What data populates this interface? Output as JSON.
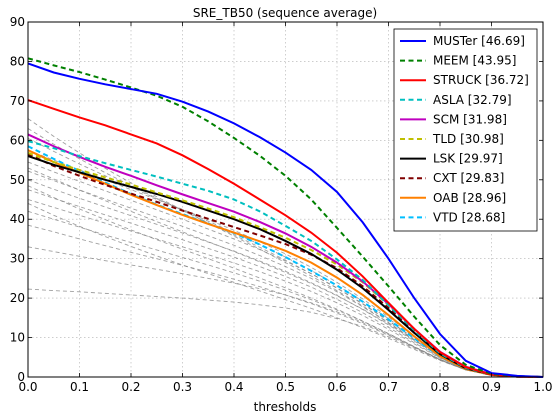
{
  "chart_data": {
    "type": "line",
    "title": "SRE_TB50 (sequence average)",
    "xlabel": "thresholds",
    "ylabel": "",
    "xlim": [
      0,
      1
    ],
    "ylim": [
      0,
      90
    ],
    "xticks": [
      "0.0",
      "0.1",
      "0.2",
      "0.3",
      "0.4",
      "0.5",
      "0.6",
      "0.7",
      "0.8",
      "0.9",
      "1.0"
    ],
    "yticks": [
      "0",
      "10",
      "20",
      "30",
      "40",
      "50",
      "60",
      "70",
      "80",
      "90"
    ],
    "grid": true,
    "legend_position": "top-right",
    "x": [
      0.0,
      0.05,
      0.1,
      0.15,
      0.2,
      0.25,
      0.3,
      0.35,
      0.4,
      0.45,
      0.5,
      0.55,
      0.6,
      0.65,
      0.7,
      0.75,
      0.8,
      0.85,
      0.9,
      0.95,
      1.0
    ],
    "series": [
      {
        "name": "MUSTer [46.69]",
        "color": "#0000ff",
        "style": "solid",
        "values": [
          79.5,
          77.2,
          75.6,
          74.2,
          73.0,
          71.8,
          69.8,
          67.3,
          64.3,
          60.8,
          56.9,
          52.5,
          46.9,
          39.2,
          30.0,
          20.0,
          10.9,
          4.1,
          1.0,
          0.3,
          0.0
        ]
      },
      {
        "name": "MEEM [43.95]",
        "color": "#008000",
        "style": "dashed",
        "values": [
          80.8,
          79.0,
          77.3,
          75.4,
          73.4,
          71.3,
          68.5,
          64.8,
          60.6,
          56.1,
          51.0,
          45.0,
          37.8,
          30.5,
          23.0,
          15.3,
          8.1,
          3.1,
          0.8,
          0.2,
          0.0
        ]
      },
      {
        "name": "STRUCK [36.72]",
        "color": "#ff0000",
        "style": "solid",
        "values": [
          70.2,
          68.0,
          65.8,
          63.8,
          61.5,
          59.2,
          56.2,
          52.7,
          49.0,
          45.0,
          41.0,
          36.6,
          31.5,
          25.5,
          18.8,
          12.2,
          6.3,
          2.5,
          0.6,
          0.1,
          0.0
        ]
      },
      {
        "name": "ASLA [32.79]",
        "color": "#00bfbf",
        "style": "dashed",
        "values": [
          59.8,
          58.0,
          56.0,
          54.2,
          52.5,
          50.8,
          49.0,
          47.2,
          45.0,
          42.0,
          38.3,
          34.5,
          29.8,
          24.6,
          18.2,
          11.8,
          6.0,
          2.3,
          0.6,
          0.1,
          0.0
        ]
      },
      {
        "name": "SCM [31.98]",
        "color": "#bf00bf",
        "style": "solid",
        "values": [
          61.5,
          58.5,
          55.8,
          53.3,
          51.0,
          48.6,
          46.3,
          44.1,
          41.9,
          39.3,
          36.4,
          33.0,
          29.0,
          24.2,
          18.5,
          12.2,
          6.4,
          2.6,
          0.7,
          0.1,
          0.0
        ]
      },
      {
        "name": "TLD [30.98]",
        "color": "#bfbf00",
        "style": "dashed",
        "values": [
          56.8,
          54.5,
          52.5,
          50.6,
          48.8,
          46.8,
          44.8,
          42.7,
          40.5,
          38.0,
          35.3,
          32.2,
          28.5,
          24.0,
          18.3,
          12.2,
          6.3,
          2.5,
          0.6,
          0.1,
          0.0
        ]
      },
      {
        "name": "LSK [29.97]",
        "color": "#000000",
        "style": "solid",
        "values": [
          56.0,
          53.8,
          51.9,
          50.0,
          48.2,
          46.4,
          44.4,
          42.2,
          40.0,
          37.5,
          34.5,
          31.2,
          27.2,
          22.5,
          17.0,
          11.2,
          5.8,
          2.2,
          0.6,
          0.1,
          0.0
        ]
      },
      {
        "name": "CXT [29.83]",
        "color": "#800000",
        "style": "dashed",
        "values": [
          56.5,
          53.5,
          51.0,
          48.7,
          46.5,
          44.4,
          42.2,
          40.1,
          38.0,
          35.9,
          33.7,
          31.0,
          27.6,
          23.0,
          17.5,
          11.5,
          5.9,
          2.3,
          0.6,
          0.1,
          0.0
        ]
      },
      {
        "name": "OAB [28.96]",
        "color": "#ff8000",
        "style": "solid",
        "values": [
          57.5,
          54.5,
          51.8,
          49.0,
          46.2,
          43.6,
          41.1,
          38.8,
          36.6,
          34.4,
          32.0,
          29.0,
          25.2,
          20.8,
          15.7,
          10.3,
          5.3,
          2.0,
          0.5,
          0.1,
          0.0
        ]
      },
      {
        "name": "VTD [28.68]",
        "color": "#00bfff",
        "style": "dashed",
        "values": [
          58.5,
          55.3,
          52.2,
          49.3,
          46.4,
          43.7,
          41.3,
          38.9,
          36.5,
          33.6,
          30.4,
          26.9,
          23.2,
          19.1,
          14.6,
          9.8,
          5.2,
          2.0,
          0.5,
          0.1,
          0.0
        ]
      }
    ],
    "background_series": [
      {
        "color": "#808080",
        "style": "dashed",
        "values": [
          22.3,
          21.9,
          21.6,
          21.2,
          20.8,
          20.4,
          20.0,
          19.5,
          19.0,
          18.3,
          17.5,
          16.4,
          14.8,
          12.8,
          10.2,
          7.3,
          4.3,
          1.8,
          0.5,
          0.1,
          0.0
        ]
      },
      {
        "color": "#808080",
        "style": "dashed",
        "values": [
          33.0,
          31.8,
          30.6,
          29.5,
          28.4,
          27.3,
          26.2,
          25.0,
          23.8,
          22.4,
          20.8,
          18.8,
          16.5,
          13.8,
          10.8,
          7.6,
          4.4,
          1.8,
          0.5,
          0.1,
          0.0
        ]
      },
      {
        "color": "#808080",
        "style": "dashed",
        "values": [
          38.5,
          36.8,
          35.0,
          33.3,
          31.6,
          30.0,
          28.3,
          26.6,
          24.8,
          22.9,
          20.8,
          18.6,
          16.2,
          13.5,
          10.6,
          7.5,
          4.4,
          1.8,
          0.5,
          0.1,
          0.0
        ]
      },
      {
        "color": "#808080",
        "style": "dashed",
        "values": [
          42.0,
          40.0,
          38.0,
          36.0,
          34.1,
          32.2,
          30.3,
          28.4,
          26.4,
          24.3,
          22.0,
          19.6,
          17.0,
          14.1,
          11.0,
          7.7,
          4.4,
          1.8,
          0.5,
          0.1,
          0.0
        ]
      },
      {
        "color": "#808080",
        "style": "dashed",
        "values": [
          45.0,
          43.0,
          41.0,
          39.0,
          37.0,
          35.0,
          33.0,
          31.0,
          28.9,
          26.7,
          24.3,
          21.7,
          18.8,
          15.6,
          12.1,
          8.4,
          4.8,
          1.9,
          0.5,
          0.1,
          0.0
        ]
      },
      {
        "color": "#808080",
        "style": "dashed",
        "values": [
          47.5,
          45.3,
          43.2,
          41.1,
          39.0,
          36.9,
          34.8,
          32.6,
          30.4,
          28.0,
          25.5,
          22.8,
          19.7,
          16.3,
          12.6,
          8.7,
          4.9,
          2.0,
          0.5,
          0.1,
          0.0
        ]
      },
      {
        "color": "#808080",
        "style": "dashed",
        "values": [
          50.0,
          47.6,
          45.3,
          43.1,
          40.9,
          38.7,
          36.5,
          34.2,
          31.9,
          29.4,
          26.8,
          23.9,
          20.7,
          17.1,
          13.2,
          9.1,
          5.1,
          2.0,
          0.5,
          0.1,
          0.0
        ]
      },
      {
        "color": "#808080",
        "style": "dashed",
        "values": [
          52.2,
          49.8,
          47.4,
          45.1,
          42.8,
          40.5,
          38.2,
          35.8,
          33.4,
          30.8,
          28.0,
          25.0,
          21.6,
          17.8,
          13.7,
          9.4,
          5.3,
          2.1,
          0.5,
          0.1,
          0.0
        ]
      },
      {
        "color": "#808080",
        "style": "dashed",
        "values": [
          54.5,
          52.0,
          49.6,
          47.2,
          44.8,
          42.4,
          40.0,
          37.5,
          35.0,
          32.3,
          29.4,
          26.2,
          22.6,
          18.6,
          14.3,
          9.8,
          5.5,
          2.2,
          0.6,
          0.1,
          0.0
        ]
      },
      {
        "color": "#808080",
        "style": "dashed",
        "values": [
          57.5,
          55.0,
          52.5,
          50.0,
          47.5,
          45.0,
          42.5,
          39.9,
          37.2,
          34.3,
          31.2,
          27.8,
          24.0,
          19.8,
          15.2,
          10.4,
          5.8,
          2.3,
          0.6,
          0.1,
          0.0
        ]
      },
      {
        "color": "#808080",
        "style": "dashed",
        "values": [
          60.5,
          57.2,
          54.0,
          51.0,
          48.1,
          45.2,
          42.4,
          39.5,
          36.6,
          33.6,
          30.4,
          27.0,
          23.3,
          19.2,
          14.8,
          10.2,
          5.7,
          2.3,
          0.6,
          0.1,
          0.0
        ]
      },
      {
        "color": "#808080",
        "style": "dashed",
        "values": [
          63.0,
          59.0,
          55.3,
          51.8,
          48.5,
          45.3,
          42.2,
          39.1,
          36.0,
          32.9,
          29.6,
          26.2,
          22.5,
          18.5,
          14.2,
          9.8,
          5.5,
          2.2,
          0.6,
          0.1,
          0.0
        ]
      },
      {
        "color": "#808080",
        "style": "dashed",
        "values": [
          65.5,
          61.0,
          56.8,
          52.9,
          49.2,
          45.7,
          42.3,
          39.0,
          35.7,
          32.4,
          29.0,
          25.6,
          21.9,
          18.0,
          13.8,
          9.5,
          5.3,
          2.1,
          0.5,
          0.1,
          0.0
        ]
      },
      {
        "color": "#808080",
        "style": "dashed",
        "values": [
          48.5,
          45.5,
          42.6,
          39.9,
          37.3,
          34.8,
          32.4,
          30.0,
          27.6,
          25.1,
          22.6,
          20.0,
          17.2,
          14.2,
          11.0,
          7.7,
          4.5,
          1.9,
          0.5,
          0.1,
          0.0
        ]
      },
      {
        "color": "#808080",
        "style": "dashed",
        "values": [
          44.0,
          41.0,
          38.2,
          35.6,
          33.1,
          30.7,
          28.4,
          26.2,
          24.0,
          21.8,
          19.6,
          17.4,
          15.0,
          12.5,
          9.8,
          7.0,
          4.2,
          1.8,
          0.5,
          0.1,
          0.0
        ]
      },
      {
        "color": "#808080",
        "style": "dashed",
        "values": [
          53.0,
          50.2,
          47.4,
          44.7,
          42.0,
          39.4,
          36.8,
          34.3,
          31.8,
          29.2,
          26.5,
          23.7,
          20.6,
          17.2,
          13.4,
          9.3,
          5.3,
          2.1,
          0.5,
          0.1,
          0.0
        ]
      }
    ]
  }
}
